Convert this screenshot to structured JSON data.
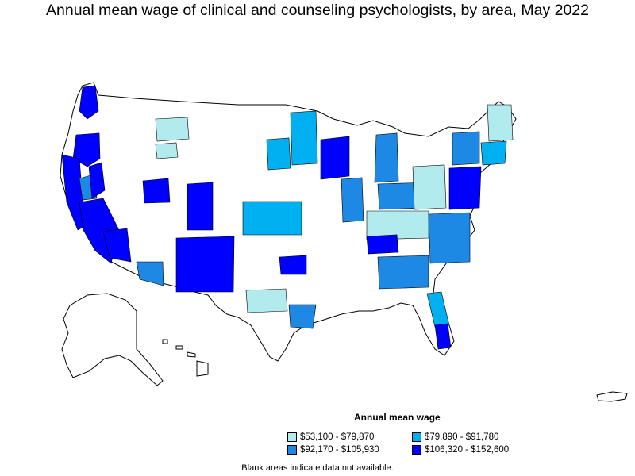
{
  "title": "Annual mean wage of clinical and counseling psychologists, by area, May 2022",
  "legend": {
    "title": "Annual mean wage",
    "items": [
      {
        "label": "$53,100 - $79,870",
        "color": "#b2ebee"
      },
      {
        "label": "$79,890 - $91,780",
        "color": "#00b0f0"
      },
      {
        "label": "$92,170 - $105,930",
        "color": "#1e88e5"
      },
      {
        "label": "$106,320 - $152,600",
        "color": "#0000ff"
      }
    ]
  },
  "footnote": "Blank areas indicate data not available.",
  "map": {
    "country_outline": "#000000",
    "no_data_color": "#ffffff",
    "regions": [
      {
        "name": "washington-west",
        "bin": 3
      },
      {
        "name": "oregon-west",
        "bin": 3
      },
      {
        "name": "california-coast",
        "bin": 3
      },
      {
        "name": "california-south",
        "bin": 3
      },
      {
        "name": "california-central",
        "bin": 2
      },
      {
        "name": "nevada-south",
        "bin": 3
      },
      {
        "name": "arizona-west",
        "bin": 3
      },
      {
        "name": "arizona-south",
        "bin": 2
      },
      {
        "name": "new-mexico",
        "bin": 3
      },
      {
        "name": "colorado-front-range",
        "bin": 3
      },
      {
        "name": "utah-north",
        "bin": 3
      },
      {
        "name": "idaho-south",
        "bin": 0
      },
      {
        "name": "montana-west",
        "bin": 0
      },
      {
        "name": "wyoming-east",
        "bin": 1
      },
      {
        "name": "kansas",
        "bin": 1
      },
      {
        "name": "texas-central",
        "bin": 0
      },
      {
        "name": "texas-east",
        "bin": 2
      },
      {
        "name": "oklahoma-east",
        "bin": 3
      },
      {
        "name": "minnesota",
        "bin": 1
      },
      {
        "name": "wisconsin",
        "bin": 3
      },
      {
        "name": "michigan",
        "bin": 2
      },
      {
        "name": "illinois",
        "bin": 2
      },
      {
        "name": "indiana-ohio",
        "bin": 2
      },
      {
        "name": "kentucky",
        "bin": 0
      },
      {
        "name": "tennessee",
        "bin": 3
      },
      {
        "name": "alabama-georgia",
        "bin": 2
      },
      {
        "name": "florida-peninsula",
        "bin": 1
      },
      {
        "name": "florida-south",
        "bin": 3
      },
      {
        "name": "appalachia",
        "bin": 0
      },
      {
        "name": "virginia-carolina",
        "bin": 2
      },
      {
        "name": "mid-atlantic",
        "bin": 3
      },
      {
        "name": "new-york",
        "bin": 2
      },
      {
        "name": "new-england",
        "bin": 1
      },
      {
        "name": "maine",
        "bin": 0
      },
      {
        "name": "alaska-south",
        "bin": 2
      },
      {
        "name": "hawaii",
        "bin": 2
      },
      {
        "name": "puerto-rico",
        "bin": 0
      }
    ]
  }
}
